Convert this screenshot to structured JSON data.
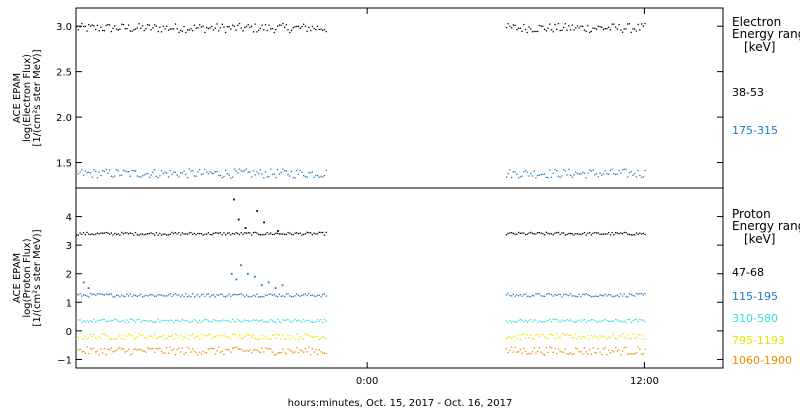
{
  "chart_data": [
    {
      "type": "scatter",
      "panel": "electron",
      "ylabel_lines": [
        "ACE EPAM",
        "log(Electron Flux)",
        "[1/(cm²s ster MeV)]"
      ],
      "ylim": [
        1.22,
        3.2
      ],
      "yticks": [
        1.5,
        2.0,
        2.5,
        3.0
      ],
      "ytick_labels": [
        "1.5",
        "2.0",
        "2.5",
        "3.0"
      ],
      "xlim": [
        -12.6,
        15.4
      ],
      "legend": {
        "title_lines": [
          "Electron",
          "Energy range",
          "[keV]"
        ]
      },
      "series": [
        {
          "name": "38-53",
          "color": "#000000",
          "level": 2.98,
          "jitter": 0.05,
          "segments": [
            [
              -12.6,
              -1.8
            ],
            [
              6.0,
              12.0
            ]
          ],
          "spikes": []
        },
        {
          "name": "175-315",
          "color": "#1f77c8",
          "level": 1.38,
          "jitter": 0.05,
          "segments": [
            [
              -12.6,
              -1.8
            ],
            [
              6.0,
              12.0
            ]
          ],
          "spikes": []
        }
      ]
    },
    {
      "type": "scatter",
      "panel": "proton",
      "ylabel_lines": [
        "ACE EPAM",
        "log(Proton Flux)",
        "[1/(cm²s ster MeV)]"
      ],
      "ylim": [
        -1.3,
        5.0
      ],
      "yticks": [
        -1,
        0,
        1,
        2,
        3,
        4
      ],
      "ytick_labels": [
        "−1",
        "0",
        "1",
        "2",
        "3",
        "4"
      ],
      "xlim": [
        -12.6,
        15.4
      ],
      "xticks": [
        0,
        12
      ],
      "xtick_labels": [
        "0:00",
        "12:00"
      ],
      "xlabel": "hours:minutes, Oct. 15, 2017 - Oct. 16, 2017",
      "legend": {
        "title_lines": [
          "Proton",
          "Energy range",
          "[keV]"
        ]
      },
      "series": [
        {
          "name": "47-68",
          "color": "#000000",
          "level": 3.4,
          "jitter": 0.05,
          "segments": [
            [
              -12.6,
              -1.8
            ],
            [
              6.0,
              12.0
            ]
          ],
          "spikes": [
            [
              -5.8,
              4.6
            ],
            [
              -5.6,
              3.9
            ],
            [
              -5.3,
              3.6
            ],
            [
              -4.8,
              4.2
            ],
            [
              -4.5,
              3.8
            ],
            [
              -3.9,
              3.5
            ]
          ]
        },
        {
          "name": "115-195",
          "color": "#1f77c8",
          "level": 1.25,
          "jitter": 0.06,
          "segments": [
            [
              -12.6,
              -1.8
            ],
            [
              6.0,
              12.0
            ]
          ],
          "spikes": [
            [
              -12.5,
              2.0
            ],
            [
              -12.3,
              1.7
            ],
            [
              -12.1,
              1.5
            ],
            [
              -5.9,
              2.0
            ],
            [
              -5.7,
              1.8
            ],
            [
              -5.5,
              2.3
            ],
            [
              -5.2,
              2.0
            ],
            [
              -4.9,
              1.9
            ],
            [
              -4.6,
              1.6
            ],
            [
              -4.3,
              1.7
            ],
            [
              -4.0,
              1.5
            ],
            [
              -3.7,
              1.6
            ]
          ]
        },
        {
          "name": "310-580",
          "color": "#33e0e0",
          "level": 0.35,
          "jitter": 0.06,
          "segments": [
            [
              -12.6,
              -1.8
            ],
            [
              6.0,
              12.0
            ]
          ],
          "spikes": []
        },
        {
          "name": "795-1193",
          "color": "#e6e600",
          "level": -0.2,
          "jitter": 0.1,
          "segments": [
            [
              -12.6,
              -1.8
            ],
            [
              6.0,
              12.0
            ]
          ],
          "spikes": []
        },
        {
          "name": "1060-1900",
          "color": "#ee8a00",
          "level": -0.7,
          "jitter": 0.14,
          "segments": [
            [
              -12.6,
              -1.8
            ],
            [
              6.0,
              12.0
            ]
          ],
          "spikes": []
        }
      ]
    }
  ]
}
